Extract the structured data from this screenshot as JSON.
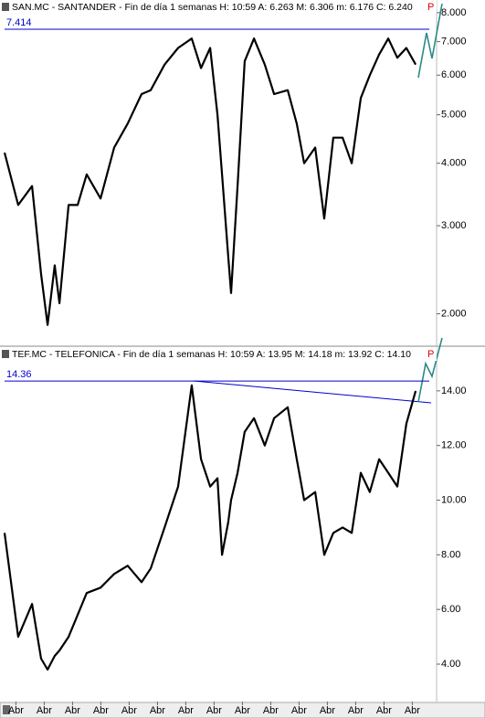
{
  "chart_data": [
    {
      "type": "line",
      "title": "SAN.MC - SANTANDER - Fin de día 1 semanas  H: 10:59  A: 6.263  M: 6.306  m: 6.176  C: 6.240",
      "flag": "P",
      "log_scale": true,
      "color": "#000000",
      "x": [
        0,
        0.48,
        0.97,
        1.29,
        1.52,
        1.77,
        1.94,
        2.26,
        2.58,
        2.9,
        3.39,
        3.87,
        4.35,
        4.84,
        5.16,
        5.65,
        6.13,
        6.61,
        6.94,
        7.26,
        7.52,
        7.68,
        7.9,
        8.0,
        8.23,
        8.48,
        8.81,
        9.19,
        9.52,
        10.0,
        10.32,
        10.58,
        10.97,
        11.29,
        11.61,
        11.94,
        12.26,
        12.58,
        12.9,
        13.23,
        13.55,
        13.87,
        14.19,
        14.52
      ],
      "values": [
        4.2,
        3.3,
        3.6,
        2.4,
        1.9,
        2.5,
        2.1,
        3.3,
        3.3,
        3.8,
        3.4,
        4.3,
        4.8,
        5.5,
        5.6,
        6.3,
        6.8,
        7.1,
        6.2,
        6.8,
        5.0,
        3.8,
        2.6,
        2.2,
        3.6,
        6.4,
        7.1,
        6.3,
        5.5,
        5.6,
        4.8,
        4.0,
        4.3,
        3.1,
        4.5,
        4.5,
        4.0,
        5.4,
        6.0,
        6.6,
        7.1,
        6.5,
        6.8,
        6.3
      ],
      "level": 7.414,
      "level_color": "#0000cc",
      "xlim": [
        0,
        15
      ],
      "ylim": [
        1.73,
        8.48
      ],
      "yticks": [
        {
          "value": 2,
          "label": "2.000"
        },
        {
          "value": 3,
          "label": "3.000"
        },
        {
          "value": 4,
          "label": "4.000"
        },
        {
          "value": 5,
          "label": "5.000"
        },
        {
          "value": 6,
          "label": "6.000"
        },
        {
          "value": 7,
          "label": "7.000"
        },
        {
          "value": 8,
          "label": "8.000"
        }
      ]
    },
    {
      "type": "line",
      "title": "TEF.MC - TELEFONICA - Fin de día 1 semanas  H: 10:59  A: 13.95  M: 14.18  m: 13.92  C: 14.10",
      "flag": "P",
      "log_scale": false,
      "color": "#000000",
      "x": [
        0,
        0.48,
        0.97,
        1.29,
        1.52,
        1.77,
        1.94,
        2.26,
        2.58,
        2.9,
        3.39,
        3.87,
        4.35,
        4.84,
        5.16,
        5.65,
        6.13,
        6.61,
        6.94,
        7.26,
        7.52,
        7.68,
        7.9,
        8.0,
        8.23,
        8.48,
        8.81,
        9.19,
        9.52,
        10.0,
        10.32,
        10.58,
        10.97,
        11.29,
        11.61,
        11.94,
        12.26,
        12.58,
        12.9,
        13.23,
        13.55,
        13.87,
        14.19,
        14.52
      ],
      "values": [
        8.8,
        5.0,
        6.2,
        4.2,
        3.8,
        4.3,
        4.5,
        5.0,
        5.8,
        6.6,
        6.8,
        7.3,
        7.6,
        7.0,
        7.5,
        9.0,
        10.5,
        14.2,
        11.5,
        10.5,
        10.8,
        8.0,
        9.2,
        10.0,
        11.0,
        12.5,
        13.0,
        12.0,
        13.0,
        13.4,
        11.5,
        10.0,
        10.3,
        8.0,
        8.8,
        9.0,
        8.8,
        11.0,
        10.3,
        11.5,
        11.0,
        10.5,
        12.8,
        14.0
      ],
      "level": 14.36,
      "level_color": "#0000cc",
      "xlim": [
        0,
        15
      ],
      "ylim": [
        2.63,
        15.6
      ],
      "yticks": [
        {
          "value": 4,
          "label": "4.00"
        },
        {
          "value": 6,
          "label": "6.00"
        },
        {
          "value": 8,
          "label": "8.00"
        },
        {
          "value": 10,
          "label": "10.00"
        },
        {
          "value": 12,
          "label": "12.00"
        },
        {
          "value": 14,
          "label": "14.00"
        }
      ],
      "xticks": [
        {
          "value": 0.4,
          "label": "Abr"
        },
        {
          "value": 1.4,
          "label": "Abr"
        },
        {
          "value": 2.4,
          "label": "Abr"
        },
        {
          "value": 3.4,
          "label": "Abr"
        },
        {
          "value": 4.4,
          "label": "Abr"
        },
        {
          "value": 5.4,
          "label": "Abr"
        },
        {
          "value": 6.4,
          "label": "Abr"
        },
        {
          "value": 7.4,
          "label": "Abr"
        },
        {
          "value": 8.4,
          "label": "Abr"
        },
        {
          "value": 9.4,
          "label": "Abr"
        },
        {
          "value": 10.4,
          "label": "Abr"
        },
        {
          "value": 11.4,
          "label": "Abr"
        },
        {
          "value": 12.4,
          "label": "Abr"
        },
        {
          "value": 13.4,
          "label": "Abr"
        },
        {
          "value": 14.4,
          "label": "Abr"
        }
      ]
    }
  ]
}
